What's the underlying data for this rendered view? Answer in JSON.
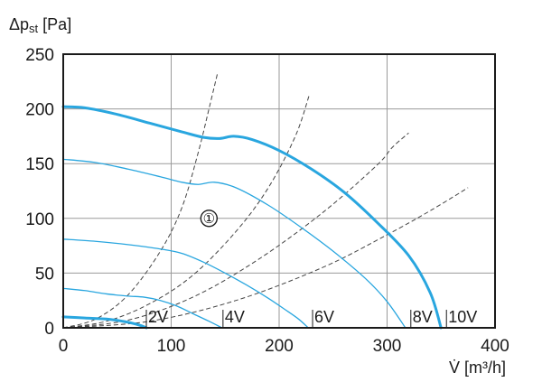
{
  "chart_data": {
    "type": "line",
    "ylabel": "Δp",
    "ylabel_sub": "st",
    "ylabel_unit": " [Pa]",
    "xlabel": "V̇ [m³/h]",
    "xlim": [
      0,
      400
    ],
    "ylim": [
      0,
      250
    ],
    "x_ticks": [
      "0",
      "100",
      "200",
      "300",
      "400"
    ],
    "y_ticks": [
      "0",
      "50",
      "100",
      "150",
      "200",
      "250"
    ],
    "grid": true,
    "color": "#29a6df",
    "operating_point_label": "①",
    "operating_point": [
      135,
      100
    ],
    "series": [
      {
        "label": "10V",
        "label_x": 355,
        "width": 3,
        "points": [
          [
            0,
            202
          ],
          [
            20,
            201
          ],
          [
            50,
            195
          ],
          [
            80,
            187
          ],
          [
            110,
            179
          ],
          [
            130,
            174
          ],
          [
            145,
            173
          ],
          [
            158,
            175
          ],
          [
            175,
            172
          ],
          [
            200,
            162
          ],
          [
            230,
            145
          ],
          [
            260,
            124
          ],
          [
            290,
            97
          ],
          [
            320,
            66
          ],
          [
            340,
            32
          ],
          [
            350,
            0
          ]
        ]
      },
      {
        "label": "8V",
        "label_x": 322,
        "width": 1.3,
        "points": [
          [
            0,
            154
          ],
          [
            30,
            151
          ],
          [
            60,
            145
          ],
          [
            90,
            138
          ],
          [
            110,
            133
          ],
          [
            125,
            131
          ],
          [
            140,
            133
          ],
          [
            160,
            128
          ],
          [
            190,
            112
          ],
          [
            220,
            92
          ],
          [
            250,
            70
          ],
          [
            280,
            45
          ],
          [
            300,
            24
          ],
          [
            317,
            0
          ]
        ]
      },
      {
        "label": "6V",
        "label_x": 231,
        "width": 1.3,
        "points": [
          [
            0,
            81
          ],
          [
            30,
            79
          ],
          [
            60,
            76
          ],
          [
            90,
            72
          ],
          [
            110,
            68
          ],
          [
            130,
            60
          ],
          [
            150,
            50
          ],
          [
            170,
            39
          ],
          [
            190,
            27
          ],
          [
            205,
            17
          ],
          [
            218,
            8
          ],
          [
            227,
            0
          ]
        ]
      },
      {
        "label": "4V",
        "label_x": 148,
        "width": 1.3,
        "points": [
          [
            0,
            36
          ],
          [
            20,
            34
          ],
          [
            40,
            31
          ],
          [
            60,
            29
          ],
          [
            75,
            28
          ],
          [
            90,
            25
          ],
          [
            105,
            20
          ],
          [
            120,
            13
          ],
          [
            135,
            6
          ],
          [
            147,
            0
          ]
        ]
      },
      {
        "label": "2V",
        "label_x": 77,
        "width": 3,
        "points": [
          [
            0,
            10
          ],
          [
            20,
            9
          ],
          [
            40,
            8
          ],
          [
            55,
            6
          ],
          [
            65,
            4
          ],
          [
            72,
            2
          ],
          [
            77,
            0
          ]
        ]
      }
    ],
    "system_curves": [
      {
        "points": [
          [
            0,
            0
          ],
          [
            30,
            8
          ],
          [
            60,
            30
          ],
          [
            90,
            70
          ],
          [
            110,
            110
          ],
          [
            125,
            160
          ],
          [
            135,
            200
          ],
          [
            143,
            233
          ]
        ]
      },
      {
        "points": [
          [
            0,
            0
          ],
          [
            40,
            6
          ],
          [
            80,
            22
          ],
          [
            120,
            48
          ],
          [
            160,
            88
          ],
          [
            190,
            128
          ],
          [
            215,
            175
          ],
          [
            228,
            213
          ]
        ]
      },
      {
        "points": [
          [
            0,
            0
          ],
          [
            60,
            7
          ],
          [
            120,
            28
          ],
          [
            180,
            62
          ],
          [
            240,
            105
          ],
          [
            290,
            148
          ],
          [
            305,
            165
          ],
          [
            320,
            178
          ]
        ]
      },
      {
        "points": [
          [
            0,
            0
          ],
          [
            80,
            6
          ],
          [
            160,
            25
          ],
          [
            240,
            55
          ],
          [
            300,
            85
          ],
          [
            340,
            107
          ],
          [
            375,
            128
          ]
        ]
      }
    ]
  }
}
